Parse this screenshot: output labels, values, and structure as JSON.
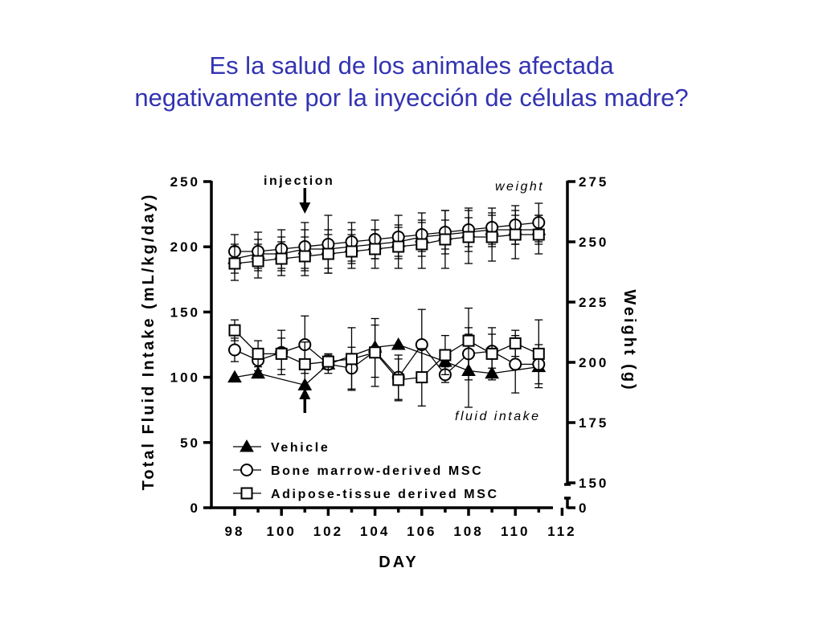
{
  "slide": {
    "title_line1": "Es la salud de los animales afectada",
    "title_line2": "negativamente por la inyección de células madre?"
  },
  "colors": {
    "title": "#3333b2",
    "ink": "#000000",
    "background": "#ffffff"
  },
  "chart_data": {
    "type": "line",
    "xlabel": "DAY",
    "ylabel_left": "Total Fluid Intake (mL/kg/day)",
    "ylabel_right": "Weight (g)",
    "x_ticks": [
      "98",
      "100",
      "102",
      "104",
      "106",
      "108",
      "110",
      "112"
    ],
    "y_left_ticks": [
      "0",
      "50",
      "100",
      "150",
      "200",
      "250"
    ],
    "y_right_ticks": [
      "0",
      "150",
      "175",
      "200",
      "225",
      "250",
      "275"
    ],
    "xlim": [
      97.5,
      112
    ],
    "ylim_left": [
      0,
      250
    ],
    "ylim_right_broken": {
      "low": [
        0,
        0
      ],
      "high": [
        150,
        275
      ]
    },
    "annotations": {
      "injection": "injection",
      "weight": "weight",
      "fluid_intake": "fluid intake",
      "injection_day": 101
    },
    "legend": {
      "placement": "bottom-left",
      "entries": [
        {
          "label": "Vehicle",
          "marker": "filled-triangle"
        },
        {
          "label": "Bone marrow-derived MSC",
          "marker": "open-circle"
        },
        {
          "label": "Adipose-tissue derived MSC",
          "marker": "open-square"
        }
      ]
    },
    "series": [
      {
        "name": "Vehicle",
        "measure": "fluid intake",
        "axis": "left",
        "marker": "filled-triangle",
        "x": [
          98,
          99,
          101,
          102,
          104,
          105,
          107,
          108,
          109,
          111
        ],
        "y": [
          100,
          103,
          94,
          110,
          123,
          125,
          112,
          105,
          103,
          108
        ],
        "err": [
          0,
          0,
          0,
          0,
          0,
          0,
          0,
          28,
          0,
          0
        ]
      },
      {
        "name": "Bone marrow-derived MSC",
        "measure": "fluid intake",
        "axis": "left",
        "marker": "open-circle",
        "x": [
          98,
          99,
          100,
          101,
          102,
          103,
          104,
          105,
          106,
          107,
          108,
          109,
          110,
          111
        ],
        "y": [
          121,
          113,
          119,
          125,
          110,
          107,
          120,
          100,
          125,
          102,
          118,
          120,
          110,
          110
        ],
        "err": [
          9,
          8,
          17,
          22,
          7,
          16,
          20,
          17,
          27,
          6,
          20,
          13,
          22,
          15
        ]
      },
      {
        "name": "Adipose-tissue derived MSC",
        "measure": "fluid intake",
        "axis": "left",
        "marker": "open-square",
        "x": [
          98,
          99,
          100,
          101,
          102,
          103,
          104,
          105,
          106,
          107,
          108,
          109,
          110,
          111
        ],
        "y": [
          136,
          118,
          118,
          110,
          112,
          114,
          119,
          98,
          100,
          117,
          128,
          118,
          126,
          118
        ],
        "err": [
          8,
          10,
          12,
          17,
          6,
          24,
          26,
          16,
          22,
          15,
          25,
          20,
          10,
          26
        ]
      },
      {
        "name": "Vehicle",
        "measure": "weight",
        "axis": "right",
        "marker": "filled-triangle",
        "x": [
          98,
          99,
          100,
          101,
          102,
          103,
          104,
          105,
          106,
          107,
          108,
          109,
          110,
          111
        ],
        "y": [
          243,
          245,
          245,
          247,
          247,
          248,
          249,
          250,
          252,
          253,
          254,
          255,
          255,
          255
        ],
        "err": [
          6,
          6,
          7,
          8,
          8,
          7,
          6,
          6,
          6,
          6,
          6,
          6,
          6,
          6
        ]
      },
      {
        "name": "Bone marrow-derived MSC",
        "measure": "weight",
        "axis": "right",
        "marker": "open-circle",
        "x": [
          98,
          99,
          100,
          101,
          102,
          103,
          104,
          105,
          106,
          107,
          108,
          109,
          110,
          111
        ],
        "y": [
          246,
          246,
          247,
          248,
          249,
          250,
          251,
          252,
          253,
          254,
          255,
          256,
          257,
          258
        ],
        "err": [
          7,
          8,
          8,
          10,
          12,
          8,
          8,
          9,
          9,
          9,
          9,
          8,
          8,
          8
        ]
      },
      {
        "name": "Adipose-tissue derived MSC",
        "measure": "weight",
        "axis": "right",
        "marker": "open-square",
        "x": [
          98,
          99,
          100,
          101,
          102,
          103,
          104,
          105,
          106,
          107,
          108,
          109,
          110,
          111
        ],
        "y": [
          241,
          242,
          243,
          244,
          245,
          246,
          247,
          248,
          249,
          251,
          252,
          252,
          253,
          253
        ],
        "err": [
          7,
          7,
          7,
          8,
          8,
          7,
          8,
          9,
          10,
          12,
          11,
          10,
          10,
          8
        ]
      }
    ]
  }
}
